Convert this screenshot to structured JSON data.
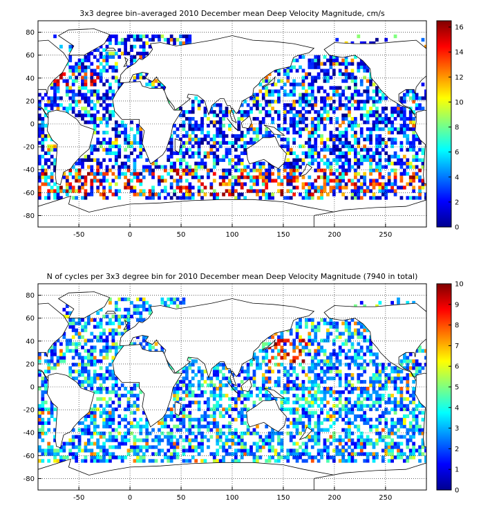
{
  "panels": [
    {
      "id": "top",
      "title": "3x3 degree bin–averaged 2010 December mean Deep Velocity Magnitude, cm/s",
      "colorbar": {
        "min": 0,
        "max": 16.5,
        "ticks": [
          "0",
          "2",
          "4",
          "6",
          "8",
          "10",
          "12",
          "14",
          "16"
        ],
        "tick_values": [
          0,
          2,
          4,
          6,
          8,
          10,
          12,
          14,
          16
        ]
      },
      "stats": "Mean about 4.5 cm/s; strong values (> 12 cm/s) concentrated in the Southern Ocean band near 45–60°S and the Gulf Stream region",
      "seed": 11
    },
    {
      "id": "bottom",
      "title": "N of cycles per 3x3 degree bin for 2010 December mean Deep Velocity Magnitude (7940 in total)",
      "colorbar": {
        "min": 0,
        "max": 10,
        "ticks": [
          "0",
          "1",
          "2",
          "3",
          "4",
          "5",
          "6",
          "7",
          "8",
          "9",
          "10"
        ],
        "tick_values": [
          0,
          1,
          2,
          3,
          4,
          5,
          6,
          7,
          8,
          9,
          10
        ]
      },
      "stats": "Most bins 1–4 cycles; highest counts (8–10) near Japan / Kuroshio and scattered North Pacific bins",
      "seed": 29
    }
  ],
  "axes": {
    "xlim": [
      -90,
      290
    ],
    "ylim": [
      -90,
      90
    ],
    "xticks": [
      "-50",
      "0",
      "50",
      "100",
      "150",
      "200",
      "250"
    ],
    "xtick_values": [
      -50,
      0,
      50,
      100,
      150,
      200,
      250
    ],
    "yticks": [
      "80",
      "60",
      "40",
      "20",
      "0",
      "-20",
      "-40",
      "-60",
      "-80"
    ],
    "ytick_values": [
      80,
      60,
      40,
      20,
      0,
      -20,
      -40,
      -60,
      -80
    ],
    "grid": "dotted"
  },
  "colormap": "jet",
  "bin_size_deg": 3
}
